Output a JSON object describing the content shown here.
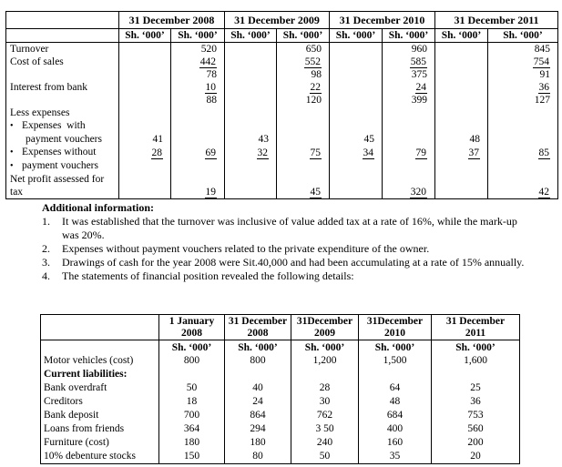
{
  "income_table": {
    "year_headers": [
      "31 December 2008",
      "31 December 2009",
      "31 December 2010",
      "31 December 2011"
    ],
    "unit_label": "Sh. ‘000’",
    "rows": [
      {
        "label": "Turnover",
        "style": "plain",
        "cells": [
          "",
          {
            "v": "520",
            "s": ""
          },
          "",
          {
            "v": "650",
            "s": ""
          },
          "",
          {
            "v": "960",
            "s": ""
          },
          "",
          {
            "v": "845",
            "s": ""
          }
        ]
      },
      {
        "label": "Cost of sales",
        "style": "plain",
        "cells": [
          "",
          {
            "v": "442",
            "s": "u"
          },
          "",
          {
            "v": "552",
            "s": "u"
          },
          "",
          {
            "v": "585",
            "s": "u"
          },
          "",
          {
            "v": "754",
            "s": "u"
          }
        ]
      },
      {
        "label": "",
        "style": "plain",
        "cells": [
          "",
          {
            "v": "78",
            "s": ""
          },
          "",
          {
            "v": "98",
            "s": ""
          },
          "",
          {
            "v": "375",
            "s": ""
          },
          "",
          {
            "v": "91",
            "s": ""
          }
        ]
      },
      {
        "label": "Interest from bank",
        "style": "plain",
        "cells": [
          "",
          {
            "v": "10",
            "s": "u"
          },
          "",
          {
            "v": "22",
            "s": "u"
          },
          "",
          {
            "v": "24",
            "s": "u"
          },
          "",
          {
            "v": "36",
            "s": "u"
          }
        ]
      },
      {
        "label": "",
        "style": "plain",
        "cells": [
          "",
          {
            "v": "88",
            "s": ""
          },
          "",
          {
            "v": "120",
            "s": ""
          },
          "",
          {
            "v": "399",
            "s": ""
          },
          "",
          {
            "v": "127",
            "s": ""
          }
        ]
      },
      {
        "label": "Less expenses",
        "style": "plain",
        "cells": [
          "",
          "",
          "",
          "",
          "",
          "",
          "",
          ""
        ]
      },
      {
        "label": "Expenses  with",
        "style": "bullet",
        "cells": [
          "",
          "",
          "",
          "",
          "",
          "",
          "",
          ""
        ]
      },
      {
        "label": "payment vouchers",
        "style": "indent",
        "cells": [
          {
            "v": "41",
            "s": ""
          },
          "",
          {
            "v": "43",
            "s": ""
          },
          "",
          {
            "v": "45",
            "s": ""
          },
          "",
          {
            "v": "48",
            "s": ""
          },
          ""
        ]
      },
      {
        "label": "Expenses without",
        "style": "bullet",
        "cells": [
          {
            "v": "28",
            "s": "u"
          },
          {
            "v": "69",
            "s": "u"
          },
          {
            "v": "32",
            "s": "u"
          },
          {
            "v": "75",
            "s": "u"
          },
          {
            "v": "34",
            "s": "u"
          },
          {
            "v": "79",
            "s": "u"
          },
          {
            "v": "37",
            "s": "u"
          },
          {
            "v": "85",
            "s": "u"
          }
        ]
      },
      {
        "label": "payment vouchers",
        "style": "bullet",
        "cells": [
          "",
          "",
          "",
          "",
          "",
          "",
          "",
          ""
        ]
      },
      {
        "label": "Net profit assessed for",
        "style": "plain",
        "cells": [
          "",
          "",
          "",
          "",
          "",
          "",
          "",
          ""
        ]
      },
      {
        "label": "tax",
        "style": "plain",
        "cells": [
          "",
          {
            "v": "19",
            "s": "uu"
          },
          "",
          {
            "v": "45",
            "s": "uu"
          },
          "",
          {
            "v": "320",
            "s": "uu"
          },
          "",
          {
            "v": "42",
            "s": "uu"
          }
        ]
      }
    ]
  },
  "additional_information": {
    "title": "Additional information:",
    "items": [
      {
        "num": "1.",
        "text": "It was established that the turnover was inclusive of value added tax at a rate of 16%, while the mark-up was 20%."
      },
      {
        "num": "2.",
        "text": "Expenses without payment vouchers related to the private expenditure of the owner."
      },
      {
        "num": "3.",
        "text": "Drawings of cash for the year 2008 were Sit.40,000 and had been accumulating at a rate of 15% annually."
      },
      {
        "num": "4.",
        "text": "The statements of financial position revealed the following details:"
      }
    ]
  },
  "financial_table": {
    "columns": [
      {
        "line1": "1 January",
        "line2": "2008"
      },
      {
        "line1": "31 December",
        "line2": "2008"
      },
      {
        "line1": "31December",
        "line2": "2009"
      },
      {
        "line1": "31December",
        "line2": "2010"
      },
      {
        "line1": "31 December",
        "line2": "2011"
      }
    ],
    "unit_label": "Sh. ‘000’",
    "rows": [
      {
        "label": "Motor vehicles (cost)",
        "bold": false,
        "values": [
          "800",
          "800",
          "1,200",
          "1,500",
          "1,600"
        ]
      },
      {
        "label": "Current liabilities:",
        "bold": true,
        "values": [
          "",
          "",
          "",
          "",
          ""
        ]
      },
      {
        "label": "Bank overdraft",
        "bold": false,
        "values": [
          "50",
          "40",
          "28",
          "64",
          "25"
        ]
      },
      {
        "label": "Creditors",
        "bold": false,
        "values": [
          "18",
          "24",
          "30",
          "48",
          "36"
        ]
      },
      {
        "label": "Bank deposit",
        "bold": false,
        "values": [
          "700",
          "864",
          "762",
          "684",
          "753"
        ]
      },
      {
        "label": "Loans from friends",
        "bold": false,
        "values": [
          "364",
          "294",
          "3 50",
          "400",
          "560"
        ]
      },
      {
        "label": "Furniture (cost)",
        "bold": false,
        "values": [
          "180",
          "180",
          "240",
          "160",
          "200"
        ]
      },
      {
        "label": "10% debenture stocks",
        "bold": false,
        "values": [
          "150",
          "80",
          "50",
          "35",
          "20"
        ]
      }
    ]
  }
}
